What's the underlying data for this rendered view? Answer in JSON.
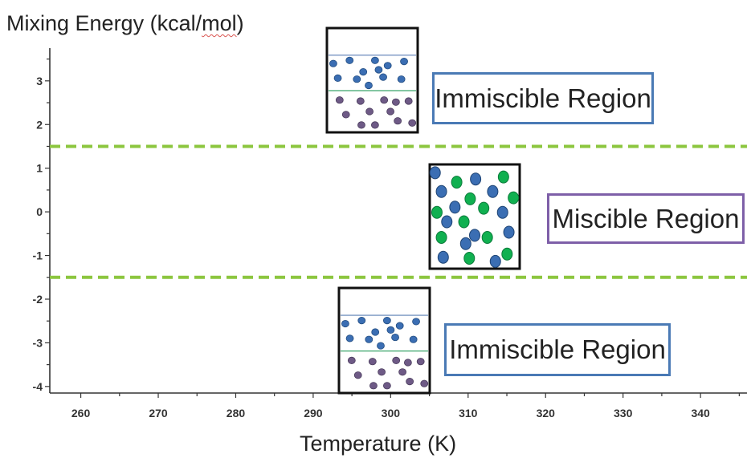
{
  "chart_data": {
    "type": "scatter",
    "title": "",
    "ylabel": "Mixing Energy (kcal/mol)",
    "xlabel": "Temperature (K)",
    "xlim": [
      256,
      346
    ],
    "ylim": [
      -4.15,
      3.75
    ],
    "x_ticks": [
      260,
      270,
      280,
      290,
      300,
      310,
      320,
      330,
      340
    ],
    "y_ticks": [
      3,
      2,
      1,
      0,
      -1,
      -2,
      -3,
      -4
    ],
    "grid": false,
    "threshold_lines": [
      {
        "y": 1.5,
        "color": "#8cc63f",
        "style": "dashed"
      },
      {
        "y": -1.5,
        "color": "#8cc63f",
        "style": "dashed"
      }
    ],
    "regions": [
      {
        "label": "Immiscible Region",
        "border_color": "#4a7ab5",
        "state": "separated",
        "y_range": [
          1.5,
          3.75
        ]
      },
      {
        "label": "Miscible Region",
        "border_color": "#7e5fa8",
        "state": "mixed",
        "y_range": [
          -1.5,
          1.5
        ]
      },
      {
        "label": "Immiscible Region",
        "border_color": "#4a7ab5",
        "state": "separated",
        "y_range": [
          -4.15,
          -1.5
        ]
      }
    ],
    "particle_colors": {
      "blue": "#3b6eb3",
      "purple": "#6e5a86",
      "green": "#10b050"
    }
  }
}
